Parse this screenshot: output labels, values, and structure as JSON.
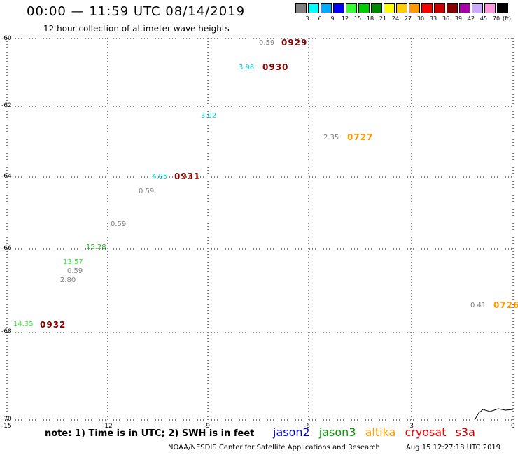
{
  "header": {
    "title": "00:00 — 11:59 UTC 08/14/2019",
    "subtitle": "12 hour collection of altimeter wave heights"
  },
  "legend": {
    "unit": "(ft)",
    "swatches": [
      {
        "label": "3",
        "color": "#808080"
      },
      {
        "label": "6",
        "color": "#00ffff"
      },
      {
        "label": "9",
        "color": "#00aaff"
      },
      {
        "label": "12",
        "color": "#0000ff"
      },
      {
        "label": "15",
        "color": "#33ff33"
      },
      {
        "label": "18",
        "color": "#00cc00"
      },
      {
        "label": "21",
        "color": "#008800"
      },
      {
        "label": "24",
        "color": "#ffff00"
      },
      {
        "label": "27",
        "color": "#ffcc00"
      },
      {
        "label": "30",
        "color": "#ff9900"
      },
      {
        "label": "33",
        "color": "#ff0000"
      },
      {
        "label": "36",
        "color": "#cc0000"
      },
      {
        "label": "39",
        "color": "#880000"
      },
      {
        "label": "42",
        "color": "#aa00aa"
      },
      {
        "label": "45",
        "color": "#ccaaff"
      },
      {
        "label": "70",
        "color": "#ff99dd"
      },
      {
        "label": "",
        "color": "#000000"
      }
    ]
  },
  "axes": {
    "lat_ticks": [
      "-60",
      "-62",
      "-64",
      "-66",
      "-68",
      "-70"
    ],
    "lon_ticks": [
      "-15",
      "-12",
      "-9",
      "-6",
      "-3",
      "0"
    ]
  },
  "wave_heights": [
    {
      "value": "0.59",
      "color": "#808080"
    },
    {
      "value": "3.98",
      "color": "#00cccc"
    },
    {
      "value": "3.02",
      "color": "#00cccc"
    },
    {
      "value": "2.35",
      "color": "#808080"
    },
    {
      "value": "4.05",
      "color": "#00cccc"
    },
    {
      "value": "0.59",
      "color": "#808080"
    },
    {
      "value": "0.59",
      "color": "#808080"
    },
    {
      "value": "15.28",
      "color": "#22bb22"
    },
    {
      "value": "13.57",
      "color": "#33ee33"
    },
    {
      "value": "0.59",
      "color": "#808080"
    },
    {
      "value": "2.80",
      "color": "#808080"
    },
    {
      "value": "14.35",
      "color": "#33ee33"
    },
    {
      "value": "0.41",
      "color": "#808080"
    }
  ],
  "pass_labels": [
    {
      "text": "0929",
      "color": "#8b0000"
    },
    {
      "text": "0930",
      "color": "#8b0000"
    },
    {
      "text": "0727",
      "color": "#ff9900"
    },
    {
      "text": "0931",
      "color": "#8b0000"
    },
    {
      "text": "0932",
      "color": "#8b0000"
    },
    {
      "text": "0726",
      "color": "#ff9900"
    }
  ],
  "footer": {
    "note": "note: 1) Time is in UTC; 2) SWH is in feet",
    "satellites": [
      {
        "name": "jason2",
        "color": "#0000cc"
      },
      {
        "name": "jason3",
        "color": "#009900"
      },
      {
        "name": "altika",
        "color": "#ff9900"
      },
      {
        "name": "cryosat",
        "color": "#ff0000"
      },
      {
        "name": "s3a",
        "color": "#cc0000"
      }
    ],
    "credit": "NOAA/NESDIS Center for Satellite Applications and Research",
    "timestamp": "Aug 15 12:27:18 UTC 2019"
  }
}
